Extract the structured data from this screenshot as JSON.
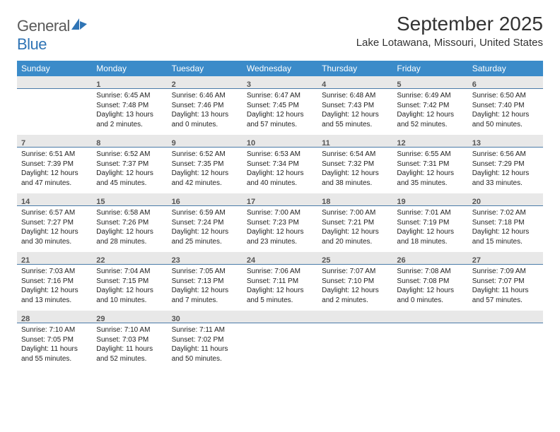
{
  "logo": {
    "text_general": "General",
    "text_blue": "Blue"
  },
  "header": {
    "month_title": "September 2025",
    "location": "Lake Lotawana, Missouri, United States"
  },
  "colors": {
    "header_bg": "#3b8bc9",
    "daynum_bg": "#e8e8e8",
    "daynum_border": "#4a7ba8",
    "text": "#222222"
  },
  "day_names": [
    "Sunday",
    "Monday",
    "Tuesday",
    "Wednesday",
    "Thursday",
    "Friday",
    "Saturday"
  ],
  "weeks": [
    [
      {
        "n": "",
        "empty": true
      },
      {
        "n": "1",
        "sunrise": "Sunrise: 6:45 AM",
        "sunset": "Sunset: 7:48 PM",
        "daylight": "Daylight: 13 hours and 2 minutes."
      },
      {
        "n": "2",
        "sunrise": "Sunrise: 6:46 AM",
        "sunset": "Sunset: 7:46 PM",
        "daylight": "Daylight: 13 hours and 0 minutes."
      },
      {
        "n": "3",
        "sunrise": "Sunrise: 6:47 AM",
        "sunset": "Sunset: 7:45 PM",
        "daylight": "Daylight: 12 hours and 57 minutes."
      },
      {
        "n": "4",
        "sunrise": "Sunrise: 6:48 AM",
        "sunset": "Sunset: 7:43 PM",
        "daylight": "Daylight: 12 hours and 55 minutes."
      },
      {
        "n": "5",
        "sunrise": "Sunrise: 6:49 AM",
        "sunset": "Sunset: 7:42 PM",
        "daylight": "Daylight: 12 hours and 52 minutes."
      },
      {
        "n": "6",
        "sunrise": "Sunrise: 6:50 AM",
        "sunset": "Sunset: 7:40 PM",
        "daylight": "Daylight: 12 hours and 50 minutes."
      }
    ],
    [
      {
        "n": "7",
        "sunrise": "Sunrise: 6:51 AM",
        "sunset": "Sunset: 7:39 PM",
        "daylight": "Daylight: 12 hours and 47 minutes."
      },
      {
        "n": "8",
        "sunrise": "Sunrise: 6:52 AM",
        "sunset": "Sunset: 7:37 PM",
        "daylight": "Daylight: 12 hours and 45 minutes."
      },
      {
        "n": "9",
        "sunrise": "Sunrise: 6:52 AM",
        "sunset": "Sunset: 7:35 PM",
        "daylight": "Daylight: 12 hours and 42 minutes."
      },
      {
        "n": "10",
        "sunrise": "Sunrise: 6:53 AM",
        "sunset": "Sunset: 7:34 PM",
        "daylight": "Daylight: 12 hours and 40 minutes."
      },
      {
        "n": "11",
        "sunrise": "Sunrise: 6:54 AM",
        "sunset": "Sunset: 7:32 PM",
        "daylight": "Daylight: 12 hours and 38 minutes."
      },
      {
        "n": "12",
        "sunrise": "Sunrise: 6:55 AM",
        "sunset": "Sunset: 7:31 PM",
        "daylight": "Daylight: 12 hours and 35 minutes."
      },
      {
        "n": "13",
        "sunrise": "Sunrise: 6:56 AM",
        "sunset": "Sunset: 7:29 PM",
        "daylight": "Daylight: 12 hours and 33 minutes."
      }
    ],
    [
      {
        "n": "14",
        "sunrise": "Sunrise: 6:57 AM",
        "sunset": "Sunset: 7:27 PM",
        "daylight": "Daylight: 12 hours and 30 minutes."
      },
      {
        "n": "15",
        "sunrise": "Sunrise: 6:58 AM",
        "sunset": "Sunset: 7:26 PM",
        "daylight": "Daylight: 12 hours and 28 minutes."
      },
      {
        "n": "16",
        "sunrise": "Sunrise: 6:59 AM",
        "sunset": "Sunset: 7:24 PM",
        "daylight": "Daylight: 12 hours and 25 minutes."
      },
      {
        "n": "17",
        "sunrise": "Sunrise: 7:00 AM",
        "sunset": "Sunset: 7:23 PM",
        "daylight": "Daylight: 12 hours and 23 minutes."
      },
      {
        "n": "18",
        "sunrise": "Sunrise: 7:00 AM",
        "sunset": "Sunset: 7:21 PM",
        "daylight": "Daylight: 12 hours and 20 minutes."
      },
      {
        "n": "19",
        "sunrise": "Sunrise: 7:01 AM",
        "sunset": "Sunset: 7:19 PM",
        "daylight": "Daylight: 12 hours and 18 minutes."
      },
      {
        "n": "20",
        "sunrise": "Sunrise: 7:02 AM",
        "sunset": "Sunset: 7:18 PM",
        "daylight": "Daylight: 12 hours and 15 minutes."
      }
    ],
    [
      {
        "n": "21",
        "sunrise": "Sunrise: 7:03 AM",
        "sunset": "Sunset: 7:16 PM",
        "daylight": "Daylight: 12 hours and 13 minutes."
      },
      {
        "n": "22",
        "sunrise": "Sunrise: 7:04 AM",
        "sunset": "Sunset: 7:15 PM",
        "daylight": "Daylight: 12 hours and 10 minutes."
      },
      {
        "n": "23",
        "sunrise": "Sunrise: 7:05 AM",
        "sunset": "Sunset: 7:13 PM",
        "daylight": "Daylight: 12 hours and 7 minutes."
      },
      {
        "n": "24",
        "sunrise": "Sunrise: 7:06 AM",
        "sunset": "Sunset: 7:11 PM",
        "daylight": "Daylight: 12 hours and 5 minutes."
      },
      {
        "n": "25",
        "sunrise": "Sunrise: 7:07 AM",
        "sunset": "Sunset: 7:10 PM",
        "daylight": "Daylight: 12 hours and 2 minutes."
      },
      {
        "n": "26",
        "sunrise": "Sunrise: 7:08 AM",
        "sunset": "Sunset: 7:08 PM",
        "daylight": "Daylight: 12 hours and 0 minutes."
      },
      {
        "n": "27",
        "sunrise": "Sunrise: 7:09 AM",
        "sunset": "Sunset: 7:07 PM",
        "daylight": "Daylight: 11 hours and 57 minutes."
      }
    ],
    [
      {
        "n": "28",
        "sunrise": "Sunrise: 7:10 AM",
        "sunset": "Sunset: 7:05 PM",
        "daylight": "Daylight: 11 hours and 55 minutes."
      },
      {
        "n": "29",
        "sunrise": "Sunrise: 7:10 AM",
        "sunset": "Sunset: 7:03 PM",
        "daylight": "Daylight: 11 hours and 52 minutes."
      },
      {
        "n": "30",
        "sunrise": "Sunrise: 7:11 AM",
        "sunset": "Sunset: 7:02 PM",
        "daylight": "Daylight: 11 hours and 50 minutes."
      },
      {
        "n": "",
        "empty": true
      },
      {
        "n": "",
        "empty": true
      },
      {
        "n": "",
        "empty": true
      },
      {
        "n": "",
        "empty": true
      }
    ]
  ]
}
